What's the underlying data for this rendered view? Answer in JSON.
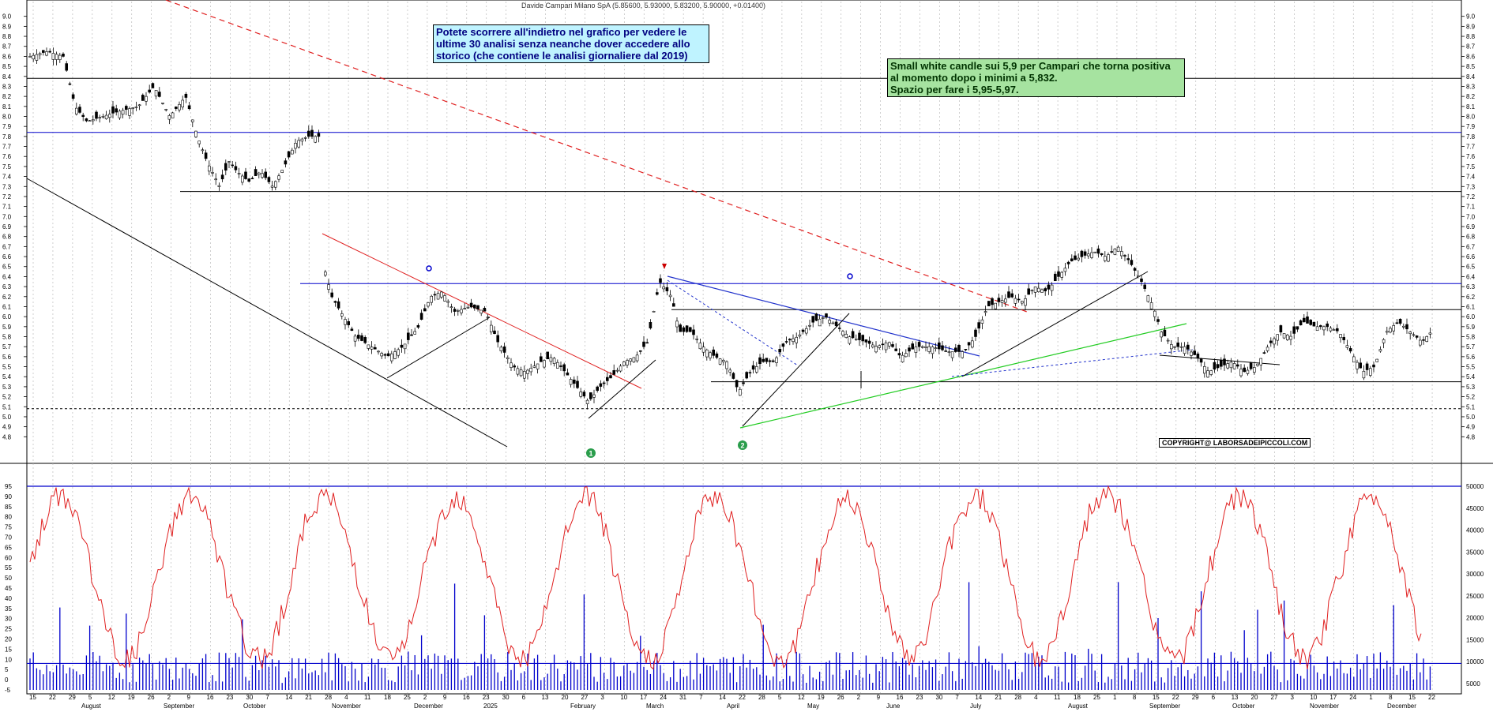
{
  "title": "Davide Campari Milano SpA (5.85600, 5.93000, 5.83200, 5.90000, +0.01400)",
  "notes": {
    "history": "Potete scorrere all'indietro nel grafico per vedere le ultime 30 analisi senza neanche dover accedere allo storico (che contiene le analisi giornaliere dal 2019)",
    "history_lines": [
      "Potete scorrere all'indietro nel grafico per vedere le",
      "ultime 30 analisi senza neanche dover accedere allo",
      "storico (che contiene le analisi giornaliere dal 2019)"
    ],
    "analysis_lines": [
      "Small white candle sui 5,9 per Campari che torna positiva",
      "al momento dopo i minimi a 5,832.",
      "Spazio per fare i 5,95-5,97."
    ],
    "copyright": "COPYRIGHT@ LABORSADEIPICCOLI.COM"
  },
  "colors": {
    "price_candle": "#000000",
    "horizontal_support": "#000000",
    "horizontal_blue": "#0000cc",
    "trend_red": "#e02020",
    "trend_green": "#22cc22",
    "oscillator": "#e02020",
    "volume": "#0000cc",
    "grid": "#bbbbbb"
  },
  "chart_data": [
    {
      "type": "candlestick",
      "name": "price",
      "ylim": [
        4.7,
        9.1
      ],
      "yticks": [
        "9.0",
        "8.9",
        "8.8",
        "8.7",
        "8.6",
        "8.5",
        "8.4",
        "8.3",
        "8.2",
        "8.1",
        "8.0",
        "7.9",
        "7.8",
        "7.7",
        "7.6",
        "7.5",
        "7.4",
        "7.3",
        "7.2",
        "7.1",
        "7.0",
        "6.9",
        "6.8",
        "6.7",
        "6.6",
        "6.5",
        "6.4",
        "6.3",
        "6.2",
        "6.1",
        "6.0",
        "5.9",
        "5.8",
        "5.7",
        "5.6",
        "5.5",
        "5.4",
        "5.3",
        "5.2",
        "5.1",
        "5.0",
        "4.9",
        "4.8"
      ],
      "last_ohlc": {
        "open": 5.856,
        "high": 5.93,
        "low": 5.832,
        "close": 5.9,
        "change": 0.014
      },
      "horizontal_levels": [
        {
          "y": 8.38,
          "style": "solid",
          "color": "horizontal_support"
        },
        {
          "y": 7.84,
          "style": "solid",
          "color": "horizontal_blue"
        },
        {
          "y": 7.25,
          "style": "solid",
          "color": "horizontal_support"
        },
        {
          "y": 6.33,
          "style": "solid",
          "color": "horizontal_blue"
        },
        {
          "y": 6.07,
          "style": "solid",
          "color": "horizontal_support"
        },
        {
          "y": 5.35,
          "style": "solid",
          "color": "horizontal_support"
        },
        {
          "y": 5.08,
          "style": "dashed",
          "color": "horizontal_support"
        }
      ],
      "markers": [
        "1",
        "2"
      ],
      "month_labels": [
        "August",
        "September",
        "October",
        "November",
        "December",
        "2025",
        "February",
        "March",
        "April",
        "May",
        "June",
        "July",
        "August",
        "September",
        "October",
        "November",
        "December"
      ],
      "day_labels": [
        "15",
        "22",
        "29",
        "5",
        "12",
        "19",
        "26",
        "2",
        "9",
        "16",
        "23",
        "30",
        "7",
        "14",
        "21",
        "28",
        "4",
        "11",
        "18",
        "25",
        "2",
        "9",
        "16",
        "23",
        "30",
        "6",
        "13",
        "20",
        "27",
        "3",
        "10",
        "17",
        "24",
        "31",
        "7",
        "14",
        "22",
        "28",
        "5",
        "12",
        "19",
        "26",
        "2",
        "9",
        "16",
        "23",
        "30",
        "7",
        "14",
        "21",
        "28",
        "4",
        "11",
        "18",
        "25",
        "1",
        "8",
        "15",
        "22",
        "29",
        "6",
        "13",
        "20",
        "27",
        "3",
        "10",
        "17",
        "24",
        "1",
        "8",
        "15",
        "22"
      ]
    },
    {
      "type": "line+bar",
      "name": "oscillator_volume",
      "left_yticks": [
        "95",
        "90",
        "85",
        "80",
        "75",
        "70",
        "65",
        "60",
        "55",
        "50",
        "45",
        "40",
        "35",
        "30",
        "25",
        "20",
        "15",
        "10",
        "5",
        "0",
        "-5"
      ],
      "right_yticks": [
        "50000",
        "45000",
        "40000",
        "35000",
        "30000",
        "25000",
        "20000",
        "15000",
        "10000",
        "5000"
      ],
      "levels": [
        95,
        8
      ]
    }
  ]
}
